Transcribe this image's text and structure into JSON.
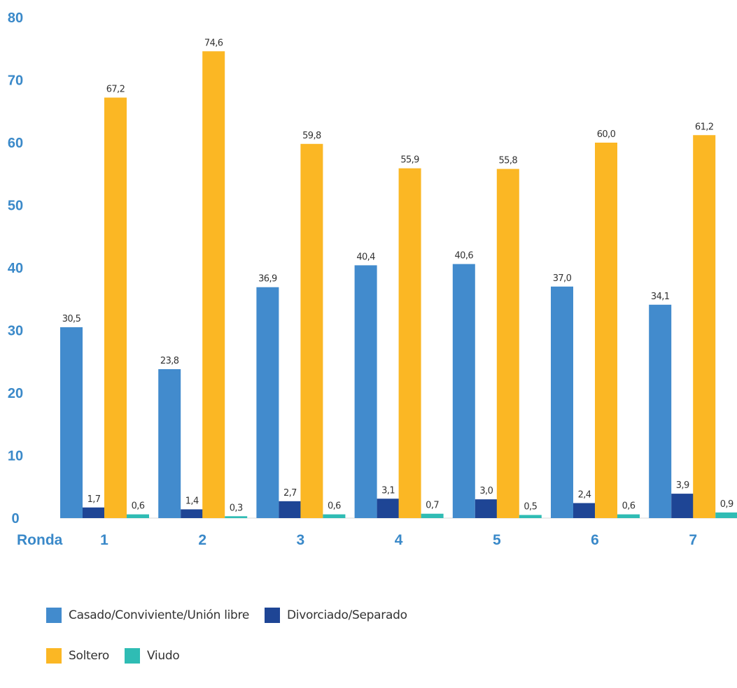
{
  "chart_data": {
    "type": "bar",
    "x_axis_title": "Ronda",
    "categories": [
      "1",
      "2",
      "3",
      "4",
      "5",
      "6",
      "7"
    ],
    "ylim": [
      0,
      80
    ],
    "yticks": [
      0,
      10,
      20,
      30,
      40,
      50,
      60,
      70,
      80
    ],
    "grid": false,
    "legend_position": "bottom-left",
    "series": [
      {
        "name": "Casado/Conviviente/Unión libre",
        "color": "#428bcd",
        "values": [
          30.5,
          23.8,
          36.9,
          40.4,
          40.6,
          37.0,
          34.1
        ],
        "labels": [
          "30,5",
          "23,8",
          "36,9",
          "40,4",
          "40,6",
          "37,0",
          "34,1"
        ]
      },
      {
        "name": "Divorciado/Separado",
        "color": "#1e4595",
        "values": [
          1.7,
          1.4,
          2.7,
          3.1,
          3.0,
          2.4,
          3.9
        ],
        "labels": [
          "1,7",
          "1,4",
          "2,7",
          "3,1",
          "3,0",
          "2,4",
          "3,9"
        ]
      },
      {
        "name": "Soltero",
        "color": "#fbb724",
        "values": [
          67.2,
          74.6,
          59.8,
          55.9,
          55.8,
          60.0,
          61.2
        ],
        "labels": [
          "67,2",
          "74,6",
          "59,8",
          "55,9",
          "55,8",
          "60,0",
          "61,2"
        ]
      },
      {
        "name": "Viudo",
        "color": "#2fbcb4",
        "values": [
          0.6,
          0.3,
          0.6,
          0.7,
          0.5,
          0.6,
          0.9
        ],
        "labels": [
          "0,6",
          "0,3",
          "0,6",
          "0,7",
          "0,5",
          "0,6",
          "0,9"
        ]
      }
    ]
  },
  "legend": {
    "rows": [
      [
        0,
        1
      ],
      [
        2,
        3
      ]
    ]
  }
}
